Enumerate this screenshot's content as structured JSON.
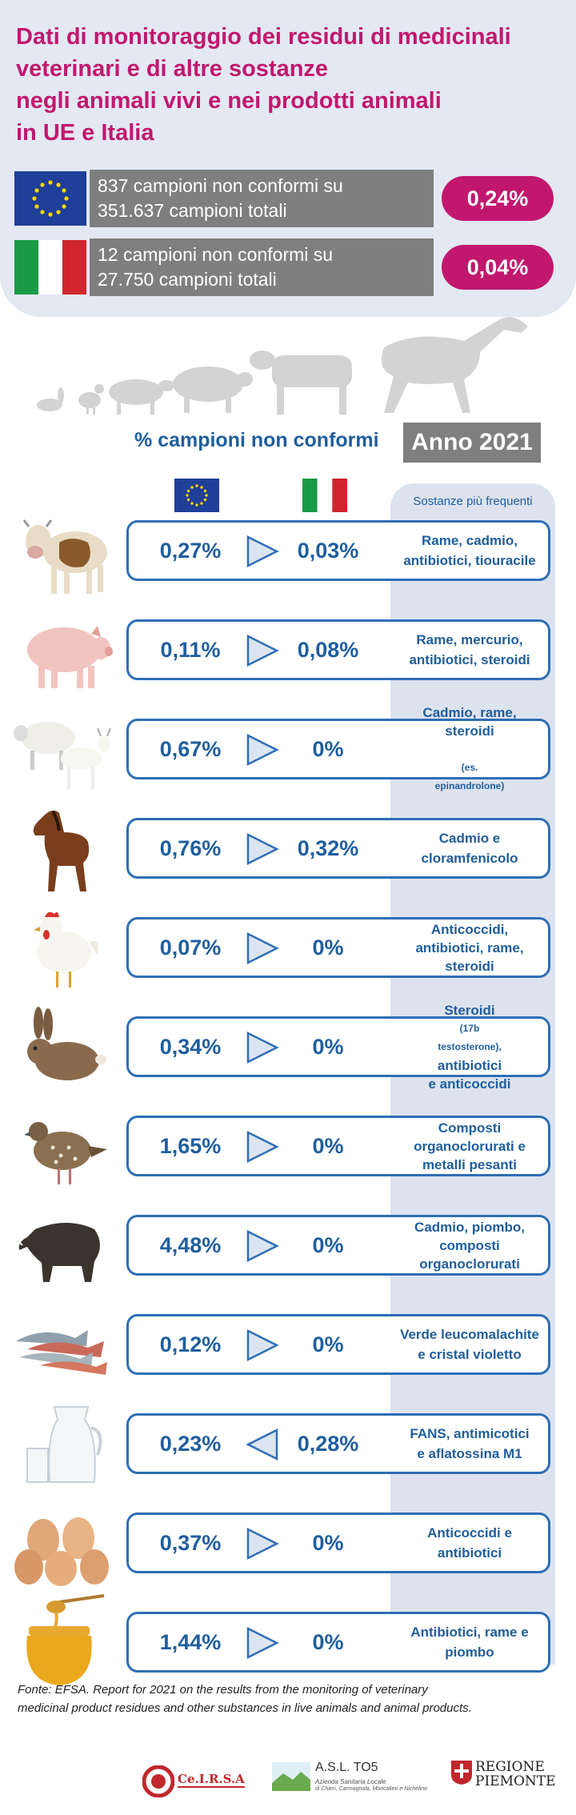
{
  "header": {
    "title_lines": [
      "Dati di monitoraggio dei residui di medicinali",
      "veterinari e di altre sostanze",
      "negli animali vivi e nei prodotti animali",
      "in UE e Italia"
    ],
    "eu": {
      "line1": "837 campioni non conformi su",
      "line2": "351.637 campioni totali",
      "percent": "0,24%"
    },
    "it": {
      "line1": "12 campioni non conformi su",
      "line2": "27.750 campioni totali",
      "percent": "0,04%"
    }
  },
  "subtitle": "% campioni non conformi",
  "year": "Anno 2021",
  "substances_header": "Sostanze più frequenti",
  "rows": [
    {
      "icon": "cow-icon",
      "eu": "0,27%",
      "it": "0,03%",
      "arrow": "right",
      "substance": [
        "Rame, cadmio,",
        "antibiotici,  tiouracile"
      ]
    },
    {
      "icon": "pig-icon",
      "eu": "0,11%",
      "it": "0,08%",
      "arrow": "right",
      "substance": [
        "Rame, mercurio,",
        "antibiotici, steroidi"
      ]
    },
    {
      "icon": "sheep-goat-icon",
      "eu": "0,67%",
      "it": "0%",
      "arrow": "right",
      "substance": [
        "Cadmio, rame,",
        "steroidi"
      ],
      "note_a": "(es.",
      "note_b": "epinandrolone)"
    },
    {
      "icon": "horse-icon",
      "eu": "0,76%",
      "it": "0,32%",
      "arrow": "right",
      "substance": [
        "Cadmio e",
        "cloramfenicolo"
      ]
    },
    {
      "icon": "chicken-icon",
      "eu": "0,07%",
      "it": "0%",
      "arrow": "right",
      "substance": [
        "Anticoccidi,",
        "antibiotici, rame,",
        "steroidi"
      ]
    },
    {
      "icon": "rabbit-icon",
      "eu": "0,34%",
      "it": "0%",
      "arrow": "right",
      "substance_a": "Steroidi",
      "note": "(17b",
      "note2": "testosterone),",
      "substance_b": "antibiotici",
      "substance_c": "e anticoccidi"
    },
    {
      "icon": "quail-icon",
      "eu": "1,65%",
      "it": "0%",
      "arrow": "right",
      "substance": [
        "Composti",
        "organoclorurati  e",
        "metalli pesanti"
      ]
    },
    {
      "icon": "boar-icon",
      "eu": "4,48%",
      "it": "0%",
      "arrow": "right",
      "substance": [
        "Cadmio, piombo,",
        "composti",
        "organoclorurati"
      ]
    },
    {
      "icon": "fish-icon",
      "eu": "0,12%",
      "it": "0%",
      "arrow": "right",
      "substance": [
        "Verde leucomalachite",
        "e cristal  violetto"
      ]
    },
    {
      "icon": "milk-icon",
      "eu": "0,23%",
      "it": "0,28%",
      "arrow": "left",
      "substance": [
        "FANS, antimicotici",
        "e aflatossina  M1"
      ]
    },
    {
      "icon": "eggs-icon",
      "eu": "0,37%",
      "it": "0%",
      "arrow": "right",
      "substance": [
        "Anticoccidi e",
        "antibiotici"
      ]
    },
    {
      "icon": "honey-icon",
      "eu": "1,44%",
      "it": "0%",
      "arrow": "right",
      "substance": [
        "Antibiotici, rame e",
        "piombo"
      ]
    }
  ],
  "source_lines": [
    "Fonte:  EFSA.  Report  for  2021  on  the  results  from  the  monitoring  of  veterinary",
    "medicinal product residues and other substances in live animals and animal products."
  ],
  "logos": {
    "cirsa": "Ce.I.R.S.A",
    "asl_title": "A.S.L. TO5",
    "asl_sub1": "Azienda Sanitaria Locale",
    "asl_sub2": "di Chieri, Carmagnola, Moncalieri e Nichelino",
    "piemonte_1": "REGIONE",
    "piemonte_2": "PIEMONTE"
  },
  "colors": {
    "magenta": "#c2176e",
    "blue": "#1f5e9e",
    "header_bg": "#e3e8f3",
    "grey": "#7f7f7f",
    "column_bg": "#dde3ee"
  }
}
